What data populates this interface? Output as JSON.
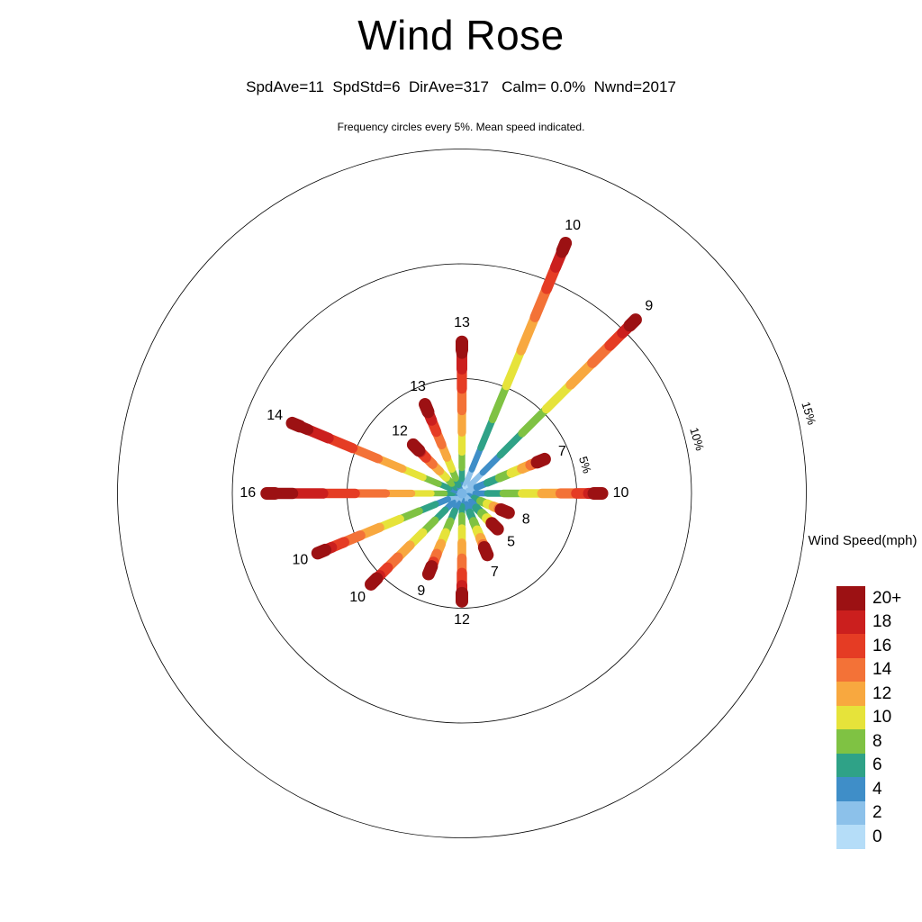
{
  "page": {
    "background": "#ffffff"
  },
  "chart_data": {
    "type": "windrose",
    "title": "Wind Rose",
    "subtitle": "SpdAve=11  SpdStd=6  DirAve=317   Calm= 0.0%  Nwnd=2017",
    "caption": "Frequency circles every 5%. Mean speed indicated.",
    "stats": {
      "SpdAve": 11,
      "SpdStd": 6,
      "DirAve": 317,
      "Calm_pct": 0.0,
      "Nwnd": 2017
    },
    "rings_pct": [
      5,
      10,
      15
    ],
    "ring_label_azimuth_deg": 77,
    "ring_label_rotation_deg": 73,
    "speed_sigma": 6,
    "spokes": [
      {
        "dir": "N",
        "angle_deg": 0.0,
        "freq_pct": 6.6,
        "mean_speed": 13
      },
      {
        "dir": "NNE",
        "angle_deg": 22.5,
        "freq_pct": 11.8,
        "mean_speed": 10
      },
      {
        "dir": "NE",
        "angle_deg": 45.0,
        "freq_pct": 10.7,
        "mean_speed": 9
      },
      {
        "dir": "ENE",
        "angle_deg": 67.5,
        "freq_pct": 3.9,
        "mean_speed": 7
      },
      {
        "dir": "E",
        "angle_deg": 90.0,
        "freq_pct": 6.1,
        "mean_speed": 10
      },
      {
        "dir": "ESE",
        "angle_deg": 112.5,
        "freq_pct": 2.2,
        "mean_speed": 8
      },
      {
        "dir": "SE",
        "angle_deg": 135.0,
        "freq_pct": 2.2,
        "mean_speed": 5
      },
      {
        "dir": "SSE",
        "angle_deg": 157.5,
        "freq_pct": 2.9,
        "mean_speed": 7
      },
      {
        "dir": "S",
        "angle_deg": 180.0,
        "freq_pct": 4.7,
        "mean_speed": 12
      },
      {
        "dir": "SSW",
        "angle_deg": 202.5,
        "freq_pct": 3.8,
        "mean_speed": 9
      },
      {
        "dir": "SW",
        "angle_deg": 225.0,
        "freq_pct": 5.6,
        "mean_speed": 10
      },
      {
        "dir": "WSW",
        "angle_deg": 247.5,
        "freq_pct": 6.8,
        "mean_speed": 10
      },
      {
        "dir": "W",
        "angle_deg": 270.0,
        "freq_pct": 8.5,
        "mean_speed": 16
      },
      {
        "dir": "WNW",
        "angle_deg": 292.5,
        "freq_pct": 8.0,
        "mean_speed": 14
      },
      {
        "dir": "NW",
        "angle_deg": 315.0,
        "freq_pct": 3.0,
        "mean_speed": 12
      },
      {
        "dir": "NNW",
        "angle_deg": 337.5,
        "freq_pct": 4.2,
        "mean_speed": 13
      }
    ],
    "legend": {
      "title": "Wind Speed(mph)",
      "bins": [
        {
          "label": "0",
          "speed": 0,
          "color": "#b5ddf8"
        },
        {
          "label": "2",
          "speed": 2,
          "color": "#8cc1ea"
        },
        {
          "label": "4",
          "speed": 4,
          "color": "#3f8ec8"
        },
        {
          "label": "6",
          "speed": 6,
          "color": "#2fa287"
        },
        {
          "label": "8",
          "speed": 8,
          "color": "#7fc243"
        },
        {
          "label": "10",
          "speed": 10,
          "color": "#e6e33a"
        },
        {
          "label": "12",
          "speed": 12,
          "color": "#f8a83f"
        },
        {
          "label": "14",
          "speed": 14,
          "color": "#f37237"
        },
        {
          "label": "16",
          "speed": 16,
          "color": "#e53c24"
        },
        {
          "label": "18",
          "speed": 18,
          "color": "#cb1f1e"
        },
        {
          "label": "20+",
          "speed": 20,
          "color": "#9c1113"
        }
      ]
    }
  }
}
